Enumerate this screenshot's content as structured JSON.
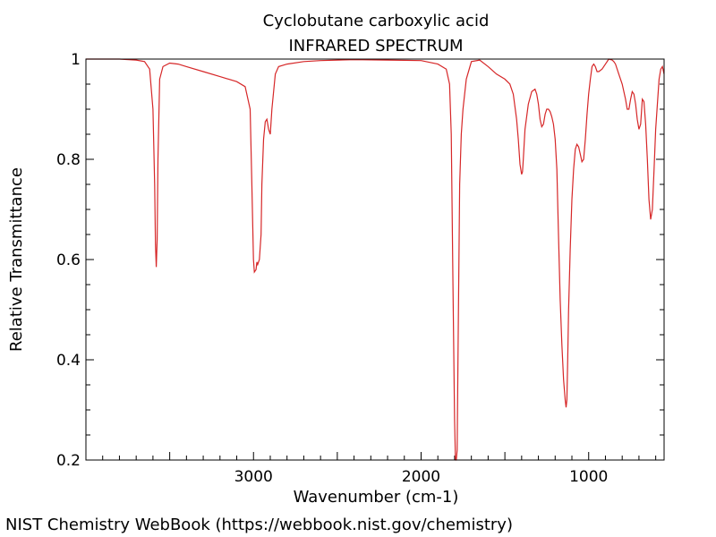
{
  "chart_data": {
    "type": "line",
    "title": "Cyclobutane carboxylic acid",
    "subtitle": "INFRARED SPECTRUM",
    "xlabel": "Wavenumber (cm-1)",
    "ylabel": "Relative Transmittance",
    "xlim": [
      4000,
      550
    ],
    "ylim": [
      0.2,
      1.0
    ],
    "x_reversed": true,
    "grid": false,
    "line_color": "#d62728",
    "x_ticks": [
      {
        "value": 3000,
        "label": "3000"
      },
      {
        "value": 2000,
        "label": "2000"
      },
      {
        "value": 1000,
        "label": "1000"
      }
    ],
    "y_ticks": [
      {
        "value": 1.0,
        "label": "1"
      },
      {
        "value": 0.8,
        "label": "0.8"
      },
      {
        "value": 0.6,
        "label": "0.6"
      },
      {
        "value": 0.4,
        "label": "0.4"
      },
      {
        "value": 0.2,
        "label": "0.2"
      }
    ],
    "series": [
      {
        "x": [
          4000,
          3900,
          3800,
          3700,
          3650,
          3620,
          3600,
          3590,
          3585,
          3580,
          3575,
          3570,
          3560,
          3540,
          3500,
          3450,
          3400,
          3300,
          3200,
          3100,
          3050,
          3020,
          3010,
          3000,
          2995,
          2985,
          2980,
          2975,
          2965,
          2955,
          2950,
          2940,
          2930,
          2920,
          2910,
          2900,
          2890,
          2870,
          2850,
          2800,
          2700,
          2600,
          2400,
          2200,
          2000,
          1900,
          1850,
          1830,
          1820,
          1810,
          1800,
          1795,
          1790,
          1785,
          1780,
          1770,
          1760,
          1750,
          1730,
          1700,
          1650,
          1600,
          1550,
          1500,
          1470,
          1450,
          1430,
          1420,
          1410,
          1400,
          1395,
          1390,
          1380,
          1360,
          1340,
          1320,
          1310,
          1300,
          1290,
          1280,
          1270,
          1260,
          1250,
          1240,
          1230,
          1220,
          1210,
          1200,
          1190,
          1180,
          1170,
          1160,
          1150,
          1140,
          1135,
          1130,
          1125,
          1120,
          1110,
          1100,
          1090,
          1080,
          1070,
          1060,
          1050,
          1040,
          1030,
          1020,
          1010,
          1000,
          990,
          980,
          970,
          960,
          950,
          940,
          920,
          900,
          880,
          860,
          850,
          840,
          820,
          800,
          780,
          770,
          760,
          750,
          740,
          730,
          720,
          710,
          700,
          690,
          680,
          670,
          660,
          650,
          640,
          630,
          620,
          610,
          600,
          590,
          580,
          570,
          560,
          550
        ],
        "y": [
          1.0,
          1.0,
          1.0,
          0.998,
          0.995,
          0.98,
          0.9,
          0.75,
          0.63,
          0.585,
          0.64,
          0.8,
          0.96,
          0.985,
          0.992,
          0.99,
          0.985,
          0.975,
          0.965,
          0.955,
          0.945,
          0.9,
          0.75,
          0.6,
          0.575,
          0.58,
          0.595,
          0.59,
          0.6,
          0.65,
          0.75,
          0.84,
          0.875,
          0.88,
          0.86,
          0.85,
          0.9,
          0.97,
          0.985,
          0.99,
          0.995,
          0.997,
          0.999,
          0.998,
          0.997,
          0.99,
          0.98,
          0.95,
          0.85,
          0.55,
          0.28,
          0.2,
          0.19,
          0.22,
          0.4,
          0.75,
          0.85,
          0.9,
          0.96,
          0.995,
          0.998,
          0.985,
          0.97,
          0.96,
          0.95,
          0.93,
          0.88,
          0.84,
          0.79,
          0.77,
          0.775,
          0.8,
          0.86,
          0.91,
          0.935,
          0.94,
          0.93,
          0.91,
          0.88,
          0.865,
          0.87,
          0.89,
          0.9,
          0.9,
          0.895,
          0.885,
          0.87,
          0.84,
          0.78,
          0.65,
          0.52,
          0.43,
          0.36,
          0.32,
          0.305,
          0.32,
          0.4,
          0.5,
          0.62,
          0.72,
          0.78,
          0.82,
          0.83,
          0.825,
          0.81,
          0.795,
          0.8,
          0.84,
          0.89,
          0.93,
          0.96,
          0.985,
          0.99,
          0.985,
          0.975,
          0.975,
          0.98,
          0.99,
          1.0,
          0.998,
          0.995,
          0.99,
          0.97,
          0.95,
          0.92,
          0.9,
          0.9,
          0.92,
          0.935,
          0.93,
          0.91,
          0.88,
          0.86,
          0.87,
          0.92,
          0.915,
          0.87,
          0.8,
          0.72,
          0.68,
          0.7,
          0.78,
          0.86,
          0.91,
          0.96,
          0.98,
          0.985,
          0.97
        ]
      }
    ]
  },
  "footer": "NIST Chemistry WebBook (https://webbook.nist.gov/chemistry)"
}
